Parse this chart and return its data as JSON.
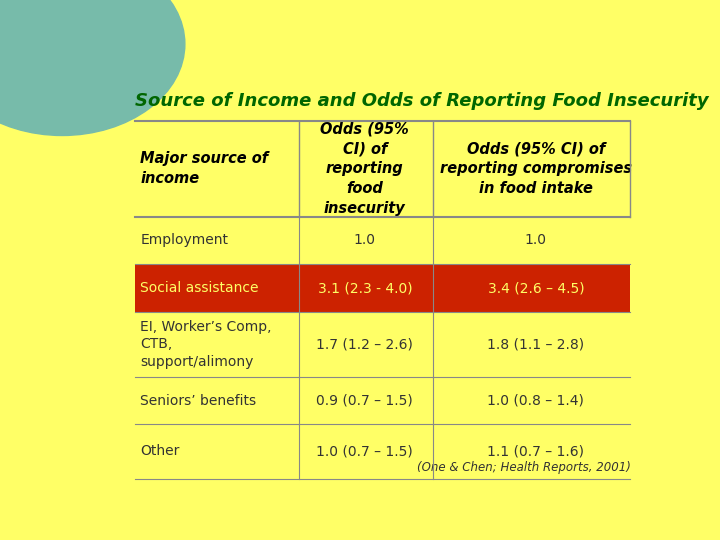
{
  "title": "Source of Income and Odds of Reporting Food Insecurity",
  "title_color": "#006600",
  "bg_color": "#FFFF66",
  "col_headers": [
    "Major source of\nincome",
    "Odds (95%\nCI) of\nreporting\nfood\ninsecurity",
    "Odds (95% CI) of\nreporting compromises\nin food intake"
  ],
  "rows": [
    {
      "label": "Employment",
      "col1": "1.0",
      "col2": "1.0",
      "highlight": false
    },
    {
      "label": "Social assistance",
      "col1": "3.1 (2.3 - 4.0)",
      "col2": "3.4 (2.6 – 4.5)",
      "highlight": true
    },
    {
      "label": "EI, Worker’s Comp,\nCTB,\nsupport/alimony",
      "col1": "1.7 (1.2 – 2.6)",
      "col2": "1.8 (1.1 – 2.8)",
      "highlight": false
    },
    {
      "label": "Seniors’ benefits",
      "col1": "0.9 (0.7 – 1.5)",
      "col2": "1.0 (0.8 – 1.4)",
      "highlight": false
    },
    {
      "label": "Other",
      "col1": "1.0 (0.7 – 1.5)",
      "col2": "1.1 (0.7 – 1.6)",
      "highlight": false
    }
  ],
  "footer": "(One & Chen; Health Reports, 2001)",
  "highlight_color": "#CC2200",
  "highlight_text_color": "#FFFF66",
  "normal_text_color": "#333333",
  "line_color": "#888888",
  "circle_color": "#77BBAA"
}
